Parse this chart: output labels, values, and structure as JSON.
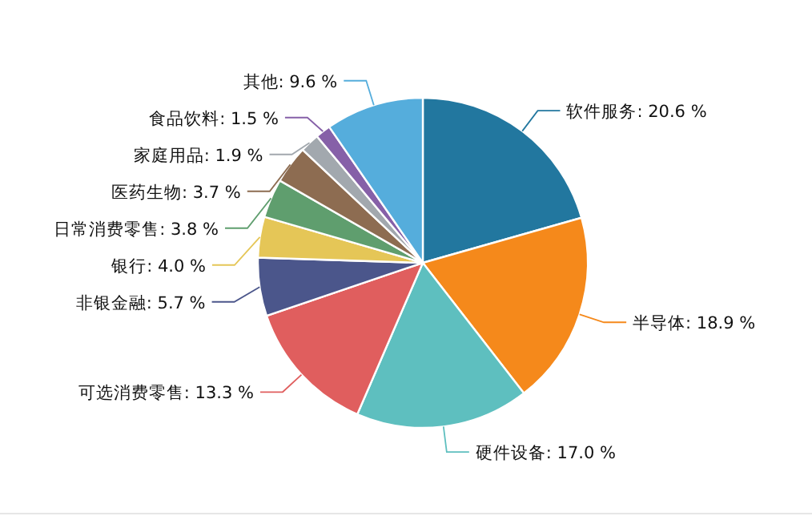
{
  "chart_data": {
    "type": "pie",
    "categories": [
      "软件服务",
      "半导体",
      "硬件设备",
      "可选消费零售",
      "非银金融",
      "银行",
      "日常消费零售",
      "医药生物",
      "家庭用品",
      "食品饮料",
      "其他"
    ],
    "values": [
      20.6,
      18.9,
      17.0,
      13.3,
      5.7,
      4.0,
      3.8,
      3.7,
      1.9,
      1.5,
      9.6
    ],
    "value_labels": [
      "20.6 %",
      "18.9 %",
      "17.0 %",
      "13.3 %",
      "5.7 %",
      "4.0 %",
      "3.8 %",
      "3.7 %",
      "1.9 %",
      "1.5 %",
      "9.6 %"
    ],
    "colors": [
      "#22779f",
      "#f5891b",
      "#5ebfbf",
      "#e05e5e",
      "#4b568b",
      "#e5c657",
      "#5f9e6e",
      "#8d6c51",
      "#a2a8ae",
      "#8660a8",
      "#55addc"
    ],
    "legend": false
  }
}
